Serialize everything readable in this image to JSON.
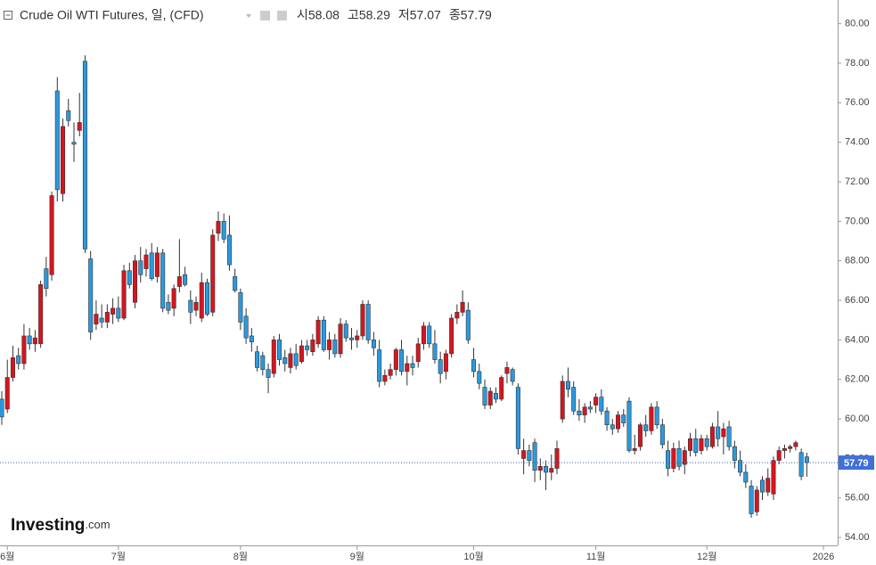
{
  "chart_data": {
    "type": "candlestick",
    "title": "Crude Oil WTI Futures, 일, (CFD)",
    "legend_labels": [
      "시",
      "고",
      "저",
      "종"
    ],
    "watermark": [
      "Investing",
      ".com"
    ],
    "up_color": "#d9141e",
    "down_color": "#2a9ae0",
    "ylim": [
      53.6,
      81.2
    ],
    "yticks": [
      {
        "value": 54,
        "label": "54.00"
      },
      {
        "value": 56,
        "label": "56.00"
      },
      {
        "value": 58,
        "label": "58.00"
      },
      {
        "value": 60,
        "label": "60.00"
      },
      {
        "value": 62,
        "label": "62.00"
      },
      {
        "value": 64,
        "label": "64.00"
      },
      {
        "value": 66,
        "label": "66.00"
      },
      {
        "value": 68,
        "label": "68.00"
      },
      {
        "value": 70,
        "label": "70.00"
      },
      {
        "value": 72,
        "label": "72.00"
      },
      {
        "value": 74,
        "label": "74.00"
      },
      {
        "value": 76,
        "label": "76.00"
      },
      {
        "value": 78,
        "label": "78.00"
      },
      {
        "value": 80,
        "label": "80.00"
      }
    ],
    "grid": false,
    "categories": [
      null,
      "6월",
      null,
      null,
      null,
      null,
      null,
      null,
      null,
      null,
      null,
      null,
      null,
      null,
      null,
      null,
      null,
      null,
      null,
      null,
      null,
      "7월",
      null,
      null,
      null,
      null,
      null,
      null,
      null,
      null,
      null,
      null,
      null,
      null,
      null,
      null,
      null,
      null,
      null,
      null,
      null,
      null,
      null,
      "8월",
      null,
      null,
      null,
      null,
      null,
      null,
      null,
      null,
      null,
      null,
      null,
      null,
      null,
      null,
      null,
      null,
      null,
      null,
      null,
      null,
      "9월",
      null,
      null,
      null,
      null,
      null,
      null,
      null,
      null,
      null,
      null,
      null,
      null,
      null,
      null,
      null,
      null,
      null,
      null,
      null,
      null,
      "10월",
      null,
      null,
      null,
      null,
      null,
      null,
      null,
      null,
      null,
      null,
      null,
      null,
      null,
      null,
      null,
      null,
      null,
      null,
      null,
      null,
      null,
      "11월",
      null,
      null,
      null,
      null,
      null,
      null,
      null,
      null,
      null,
      null,
      null,
      null,
      null,
      null,
      null,
      null,
      null,
      null,
      null,
      "12월",
      null,
      null,
      null,
      null,
      null,
      null,
      null,
      null,
      null,
      null,
      null,
      null,
      null,
      null,
      null,
      null,
      null,
      null,
      null,
      null,
      "2026"
    ],
    "ohlc": [
      [
        61.0,
        61.4,
        59.7,
        60.1
      ],
      [
        60.5,
        63.0,
        60.3,
        62.1
      ],
      [
        62.1,
        63.7,
        61.9,
        63.1
      ],
      [
        63.2,
        63.6,
        62.5,
        62.8
      ],
      [
        62.8,
        64.8,
        62.5,
        64.2
      ],
      [
        64.2,
        64.6,
        63.5,
        63.8
      ],
      [
        63.8,
        64.5,
        63.4,
        64.1
      ],
      [
        63.8,
        67.0,
        63.6,
        66.8
      ],
      [
        67.6,
        68.2,
        66.2,
        66.6
      ],
      [
        67.3,
        71.5,
        67.0,
        71.3
      ],
      [
        76.6,
        77.3,
        71.0,
        71.6
      ],
      [
        71.4,
        75.2,
        71.0,
        74.8
      ],
      [
        75.6,
        76.2,
        74.8,
        75.1
      ],
      [
        74.0,
        75.0,
        73.0,
        73.9
      ],
      [
        74.6,
        76.5,
        74.3,
        75.0
      ],
      [
        78.1,
        78.4,
        68.4,
        68.6
      ],
      [
        68.1,
        68.5,
        64.0,
        64.4
      ],
      [
        64.8,
        66.0,
        64.5,
        65.3
      ],
      [
        65.1,
        65.8,
        64.6,
        64.9
      ],
      [
        64.9,
        65.8,
        64.6,
        65.4
      ],
      [
        65.3,
        66.1,
        64.8,
        65.6
      ],
      [
        65.6,
        66.2,
        64.9,
        65.1
      ],
      [
        65.1,
        67.8,
        65.0,
        67.5
      ],
      [
        67.5,
        67.9,
        66.6,
        66.8
      ],
      [
        65.9,
        68.3,
        65.6,
        68.0
      ],
      [
        68.0,
        68.7,
        66.9,
        67.3
      ],
      [
        67.6,
        68.6,
        67.2,
        68.3
      ],
      [
        68.4,
        68.9,
        67.0,
        67.1
      ],
      [
        67.2,
        68.7,
        66.9,
        68.4
      ],
      [
        68.4,
        68.6,
        65.4,
        65.6
      ],
      [
        65.9,
        66.3,
        65.3,
        65.5
      ],
      [
        65.6,
        66.8,
        65.2,
        66.6
      ],
      [
        66.7,
        69.1,
        66.4,
        67.2
      ],
      [
        67.3,
        67.7,
        66.7,
        66.8
      ],
      [
        66.0,
        66.5,
        64.8,
        65.4
      ],
      [
        65.5,
        66.2,
        65.2,
        65.9
      ],
      [
        65.1,
        67.4,
        64.9,
        66.9
      ],
      [
        66.9,
        67.1,
        65.2,
        65.3
      ],
      [
        65.4,
        69.6,
        65.2,
        69.3
      ],
      [
        69.4,
        70.5,
        69.0,
        70.0
      ],
      [
        70.0,
        70.4,
        68.9,
        69.1
      ],
      [
        69.3,
        70.3,
        67.5,
        67.8
      ],
      [
        67.2,
        67.6,
        66.4,
        66.5
      ],
      [
        66.4,
        66.6,
        64.5,
        64.9
      ],
      [
        65.2,
        65.6,
        63.8,
        64.1
      ],
      [
        64.2,
        64.6,
        63.4,
        63.9
      ],
      [
        63.4,
        63.7,
        62.4,
        62.6
      ],
      [
        63.2,
        63.4,
        62.2,
        62.5
      ],
      [
        62.5,
        62.8,
        61.3,
        62.1
      ],
      [
        62.3,
        64.2,
        62.1,
        64.0
      ],
      [
        64.0,
        64.3,
        62.7,
        63.0
      ],
      [
        63.1,
        63.5,
        62.4,
        62.8
      ],
      [
        62.6,
        63.6,
        62.3,
        63.3
      ],
      [
        63.3,
        63.8,
        62.5,
        62.7
      ],
      [
        62.9,
        64.0,
        62.8,
        63.7
      ],
      [
        63.7,
        64.0,
        63.2,
        63.5
      ],
      [
        63.4,
        64.3,
        63.2,
        64.0
      ],
      [
        63.8,
        65.2,
        63.6,
        65.0
      ],
      [
        65.0,
        65.2,
        63.4,
        63.5
      ],
      [
        63.5,
        64.4,
        63.0,
        64.0
      ],
      [
        64.0,
        64.3,
        63.1,
        63.3
      ],
      [
        63.3,
        65.1,
        63.1,
        64.8
      ],
      [
        64.8,
        65.0,
        63.9,
        64.1
      ],
      [
        64.1,
        64.6,
        63.5,
        64.0
      ],
      [
        64.0,
        64.5,
        63.6,
        64.2
      ],
      [
        64.2,
        66.0,
        64.0,
        65.8
      ],
      [
        65.8,
        66.0,
        63.8,
        64.0
      ],
      [
        64.0,
        64.4,
        63.2,
        63.6
      ],
      [
        63.5,
        64.0,
        61.6,
        61.9
      ],
      [
        61.9,
        62.5,
        61.7,
        62.2
      ],
      [
        62.2,
        62.8,
        62.0,
        62.5
      ],
      [
        62.5,
        63.6,
        62.2,
        63.5
      ],
      [
        63.5,
        64.0,
        62.2,
        62.4
      ],
      [
        62.4,
        63.2,
        61.7,
        62.8
      ],
      [
        62.8,
        63.2,
        62.2,
        62.6
      ],
      [
        62.9,
        64.1,
        62.6,
        63.8
      ],
      [
        63.8,
        64.9,
        63.5,
        64.7
      ],
      [
        64.7,
        64.9,
        63.6,
        63.8
      ],
      [
        63.8,
        64.5,
        62.8,
        63.0
      ],
      [
        63.0,
        63.4,
        61.8,
        62.3
      ],
      [
        62.4,
        63.5,
        62.0,
        63.3
      ],
      [
        63.3,
        65.3,
        63.1,
        65.1
      ],
      [
        65.1,
        65.8,
        64.8,
        65.4
      ],
      [
        65.4,
        66.5,
        65.2,
        65.9
      ],
      [
        65.5,
        65.9,
        63.8,
        64.0
      ],
      [
        63.0,
        63.6,
        62.1,
        62.4
      ],
      [
        62.4,
        62.8,
        61.5,
        61.8
      ],
      [
        61.6,
        62.0,
        60.5,
        60.7
      ],
      [
        60.7,
        61.6,
        60.5,
        61.4
      ],
      [
        61.3,
        61.6,
        60.8,
        61.0
      ],
      [
        61.0,
        62.2,
        60.9,
        62.1
      ],
      [
        62.3,
        62.9,
        61.8,
        62.6
      ],
      [
        62.5,
        62.6,
        61.7,
        61.9
      ],
      [
        61.6,
        61.8,
        58.2,
        58.5
      ],
      [
        58.0,
        59.0,
        57.2,
        58.4
      ],
      [
        58.4,
        58.7,
        57.6,
        57.9
      ],
      [
        58.8,
        59.0,
        56.8,
        57.4
      ],
      [
        57.4,
        58.0,
        56.9,
        57.6
      ],
      [
        57.6,
        57.9,
        56.4,
        57.3
      ],
      [
        57.3,
        58.2,
        56.9,
        57.5
      ],
      [
        57.5,
        58.9,
        57.2,
        58.5
      ],
      [
        60.0,
        62.2,
        59.8,
        61.9
      ],
      [
        61.9,
        62.6,
        61.1,
        61.5
      ],
      [
        61.6,
        61.9,
        60.2,
        60.4
      ],
      [
        60.4,
        61.0,
        59.9,
        60.2
      ],
      [
        60.2,
        60.8,
        59.8,
        60.6
      ],
      [
        60.6,
        60.9,
        60.3,
        60.5
      ],
      [
        60.7,
        61.3,
        60.3,
        61.1
      ],
      [
        61.1,
        61.5,
        60.2,
        60.4
      ],
      [
        60.4,
        60.6,
        59.4,
        59.7
      ],
      [
        59.7,
        60.0,
        59.2,
        59.5
      ],
      [
        59.5,
        60.4,
        59.3,
        60.2
      ],
      [
        60.2,
        60.5,
        59.6,
        59.8
      ],
      [
        60.9,
        61.1,
        58.3,
        58.4
      ],
      [
        58.4,
        59.2,
        58.2,
        58.5
      ],
      [
        58.6,
        59.8,
        58.4,
        59.7
      ],
      [
        59.7,
        60.2,
        59.1,
        59.4
      ],
      [
        59.4,
        60.8,
        59.2,
        60.6
      ],
      [
        60.6,
        60.9,
        59.5,
        59.7
      ],
      [
        59.7,
        60.0,
        58.5,
        58.7
      ],
      [
        58.4,
        58.9,
        57.1,
        57.5
      ],
      [
        57.5,
        58.8,
        57.3,
        58.5
      ],
      [
        58.5,
        58.9,
        57.4,
        57.6
      ],
      [
        57.7,
        58.6,
        57.2,
        58.4
      ],
      [
        58.4,
        59.3,
        58.1,
        59.0
      ],
      [
        59.0,
        59.5,
        58.1,
        58.3
      ],
      [
        58.4,
        59.2,
        58.2,
        59.0
      ],
      [
        59.0,
        59.2,
        58.4,
        58.6
      ],
      [
        58.6,
        59.8,
        58.5,
        59.6
      ],
      [
        59.6,
        60.4,
        58.6,
        59.0
      ],
      [
        59.1,
        59.8,
        58.2,
        59.5
      ],
      [
        59.6,
        59.9,
        58.4,
        58.6
      ],
      [
        58.6,
        58.9,
        57.5,
        57.9
      ],
      [
        57.9,
        58.4,
        57.1,
        57.3
      ],
      [
        57.3,
        57.7,
        56.5,
        56.8
      ],
      [
        56.6,
        56.9,
        55.0,
        55.2
      ],
      [
        55.3,
        56.6,
        55.1,
        56.4
      ],
      [
        56.9,
        57.1,
        55.9,
        56.3
      ],
      [
        56.3,
        57.5,
        56.1,
        57.0
      ],
      [
        56.2,
        58.1,
        55.9,
        57.9
      ],
      [
        57.9,
        58.6,
        57.7,
        58.4
      ],
      [
        58.4,
        58.7,
        58.0,
        58.5
      ],
      [
        58.5,
        58.7,
        58.3,
        58.6
      ],
      [
        58.6,
        58.9,
        58.4,
        58.8
      ],
      [
        58.3,
        58.5,
        56.9,
        57.1
      ],
      [
        58.08,
        58.29,
        57.07,
        57.79
      ],
      null,
      null,
      null
    ]
  }
}
